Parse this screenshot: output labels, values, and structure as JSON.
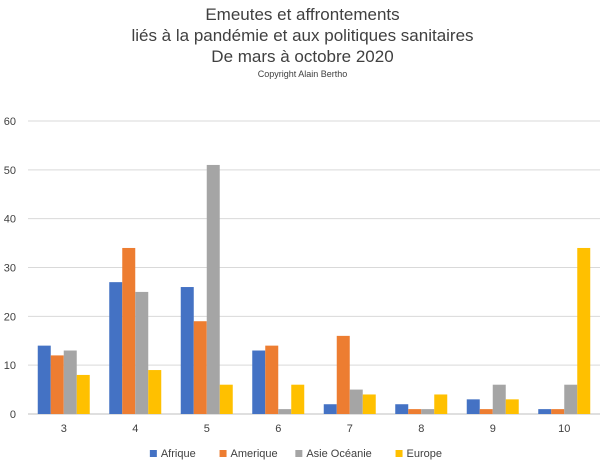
{
  "chart_data": {
    "type": "bar",
    "title_lines": [
      "Emeutes et affrontements",
      "liés à la pandémie et aux politiques sanitaires",
      "De mars à octobre 2020"
    ],
    "subtitle": "Copyright Alain Bertho",
    "categories": [
      "3",
      "4",
      "5",
      "6",
      "7",
      "8",
      "9",
      "10"
    ],
    "series": [
      {
        "name": "Afrique",
        "color": "#4472c4",
        "values": [
          14,
          27,
          26,
          13,
          2,
          2,
          3,
          1
        ]
      },
      {
        "name": "Amerique",
        "color": "#ed7d31",
        "values": [
          12,
          34,
          19,
          14,
          16,
          1,
          1,
          1
        ]
      },
      {
        "name": "Asie Océanie",
        "color": "#a5a5a5",
        "values": [
          13,
          25,
          51,
          1,
          5,
          1,
          6,
          6
        ]
      },
      {
        "name": "Europe",
        "color": "#ffc000",
        "values": [
          8,
          9,
          6,
          6,
          4,
          4,
          3,
          34
        ]
      }
    ],
    "yticks": [
      0,
      10,
      20,
      30,
      40,
      50,
      60
    ],
    "ylim": [
      0,
      60
    ],
    "grid": true,
    "legend_position": "bottom",
    "xlabel": "",
    "ylabel": ""
  }
}
